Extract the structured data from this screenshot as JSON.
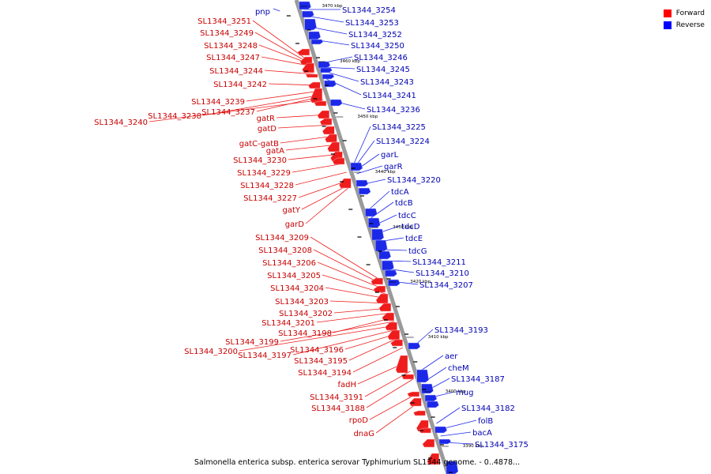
{
  "caption": "Salmonella enterica subsp. enterica serovar Typhimurium SL1344 genome. - 0..4878...",
  "legend": [
    {
      "label": "Forward",
      "color": "#ff0000"
    },
    {
      "label": "Reverse",
      "color": "#0000ff"
    }
  ],
  "colors": {
    "forward": "#ee1c1c",
    "reverse": "#1c28e8",
    "backbone": "#9a9a9a",
    "forward_text": "#c80000",
    "reverse_text": "#0000b4"
  },
  "ticks": [
    "3470 kbp",
    "3460 kbp",
    "3450 kbp",
    "3440 kbp",
    "3430 kbp",
    "3420 kbp",
    "3410 kbp",
    "3400 kbp",
    "3390 kbp"
  ],
  "forward_labels": [
    "SL1344_3251",
    "SL1344_3249",
    "SL1344_3248",
    "SL1344_3247",
    "SL1344_3244",
    "SL1344_3242",
    "SL1344_3239",
    "SL1344_3238",
    "SL1344_3237",
    "SL1344_3240",
    "gatR",
    "gatD",
    "gatC-gatB",
    "gatA",
    "SL1344_3230",
    "SL1344_3229",
    "SL1344_3228",
    "SL1344_3227",
    "gatY",
    "garD",
    "SL1344_3209",
    "SL1344_3208",
    "SL1344_3206",
    "SL1344_3205",
    "SL1344_3204",
    "SL1344_3203",
    "SL1344_3202",
    "SL1344_3201",
    "SL1344_3198",
    "SL1344_3199",
    "SL1344_3200",
    "SL1344_3197",
    "SL1344_3196",
    "SL1344_3195",
    "SL1344_3194",
    "fadH",
    "SL1344_3191",
    "SL1344_3188",
    "rpoD",
    "dnaG"
  ],
  "reverse_labels": [
    "pnp",
    "SL1344_3254",
    "SL1344_3253",
    "SL1344_3252",
    "SL1344_3250",
    "SL1344_3246",
    "SL1344_3245",
    "SL1344_3243",
    "SL1344_3241",
    "SL1344_3236",
    "SL1344_3225",
    "SL1344_3224",
    "garL",
    "garR",
    "SL1344_3220",
    "tdcA",
    "tdcB",
    "tdcC",
    "tdcD",
    "tdcE",
    "tdcG",
    "SL1344_3211",
    "SL1344_3210",
    "SL1344_3207",
    "SL1344_3193",
    "aer",
    "cheM",
    "SL1344_3187",
    "mug",
    "SL1344_3182",
    "folB",
    "bacA",
    "SL1344_3175"
  ]
}
